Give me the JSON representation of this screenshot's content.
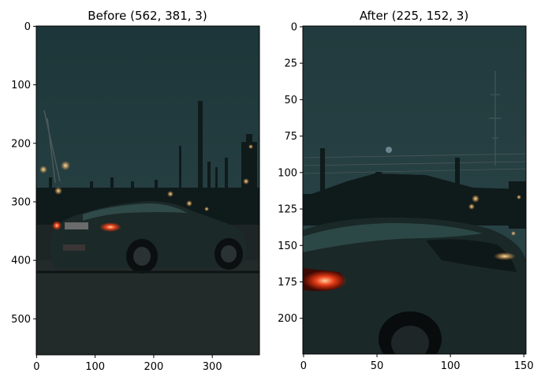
{
  "chart_data": [
    {
      "type": "image",
      "title": "Before (562, 381, 3)",
      "shape": [
        562,
        381,
        3
      ],
      "xlim": [
        0,
        381
      ],
      "ylim": [
        562,
        0
      ],
      "xticks": [
        0,
        100,
        200,
        300
      ],
      "yticks": [
        0,
        100,
        200,
        300,
        400,
        500
      ],
      "content": "night photo of dark sports car with red tail lights in front of industrial skyline"
    },
    {
      "type": "image",
      "title": "After (225, 152, 3)",
      "shape": [
        225,
        152,
        3
      ],
      "xlim": [
        0,
        152
      ],
      "ylim": [
        225,
        0
      ],
      "xticks": [
        0,
        50,
        100,
        150
      ],
      "yticks": [
        0,
        25,
        50,
        75,
        100,
        125,
        150,
        175,
        200
      ],
      "content": "cropped close-up of the car rear and tail light"
    }
  ],
  "colors": {
    "sky_top": "#1f3a3d",
    "sky_bottom": "#2b4447",
    "ground": "#1f2626",
    "car_body": "#1d2c2b",
    "tail_light": "#ff4a1f",
    "light_glow": "#ffb347"
  }
}
